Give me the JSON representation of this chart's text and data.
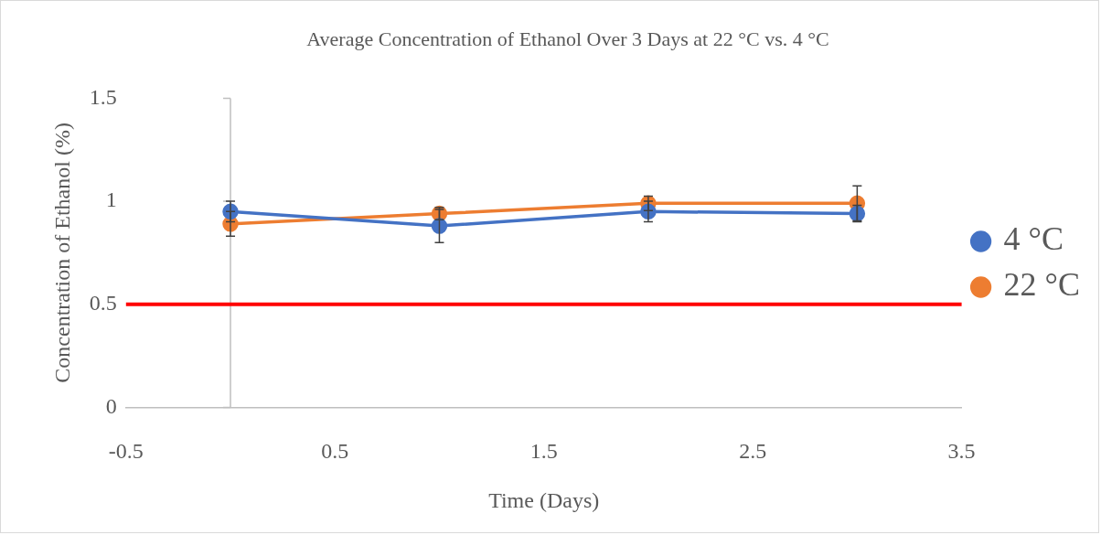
{
  "chart_data": {
    "type": "line",
    "title": "Average Concentration of Ethanol Over 3 Days at 22 °C vs. 4 °C",
    "xlabel": "Time (Days)",
    "ylabel": "Concentration of Ethanol (%)",
    "x": [
      0,
      1,
      2,
      3
    ],
    "series": [
      {
        "name": "4 °C",
        "color": "#4472c4",
        "values": [
          0.95,
          0.88,
          0.95,
          0.94
        ],
        "errors": [
          0.05,
          0.08,
          0.05,
          0.04
        ]
      },
      {
        "name": "22 °C",
        "color": "#ed7d31",
        "values": [
          0.89,
          0.94,
          0.99,
          0.99
        ],
        "errors": [
          0.06,
          0.03,
          0.035,
          0.085
        ]
      }
    ],
    "xlim": [
      -0.5,
      3.5
    ],
    "xticks": [
      -0.5,
      0.5,
      1.5,
      2.5,
      3.5
    ],
    "ylim": [
      0,
      1.5
    ],
    "yticks": [
      0,
      0.5,
      1,
      1.5
    ],
    "ref_lines": [
      {
        "axis": "y",
        "value": 0.5,
        "color": "#ff0000"
      }
    ],
    "grid": false,
    "legend": "right",
    "marker": "circle",
    "line_style": "solid"
  }
}
